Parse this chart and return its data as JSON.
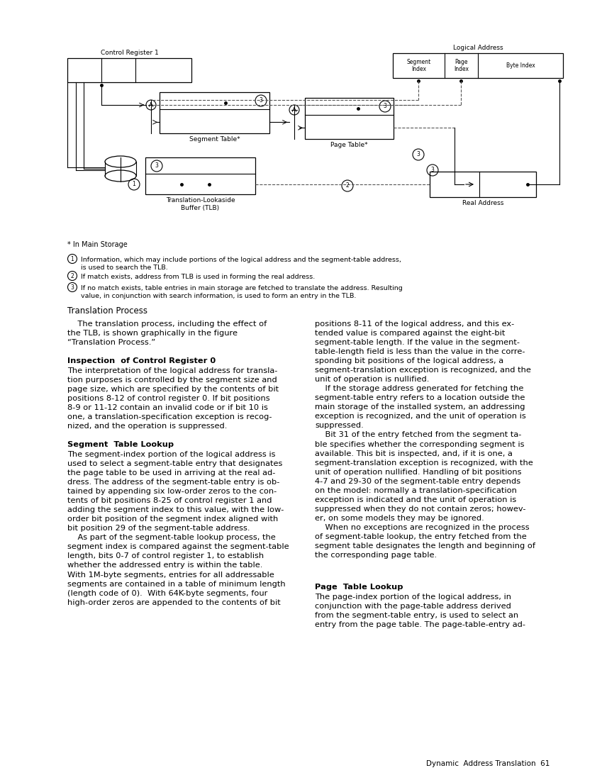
{
  "bg_color": "#ffffff",
  "page_width": 8.49,
  "page_height": 11.0,
  "ctrl_reg_label": "Control Register 1",
  "logical_addr_label": "Logical Address",
  "segment_table_label": "Segment Table*",
  "page_table_label": "Page Table*",
  "tlb_label": "Translation-Lookaside\nBuffer (TLB)",
  "real_addr_label": "Real Address",
  "in_main_storage": "* In Main Storage",
  "legend": [
    {
      "num": "1",
      "text": "Information, which may include portions of the logical address and the segment-table address,\nis used to search the TLB."
    },
    {
      "num": "2",
      "text": "If match exists, address from TLB is used in forming the real address."
    },
    {
      "num": "3",
      "text": "If no match exists, table entries in main storage are fetched to translate the address. Resulting\nvalue, in conjunction with search information, is used to form an entry in the TLB."
    }
  ],
  "section_title": "Translation Process",
  "footer": "Dynamic  Address Translation  61"
}
